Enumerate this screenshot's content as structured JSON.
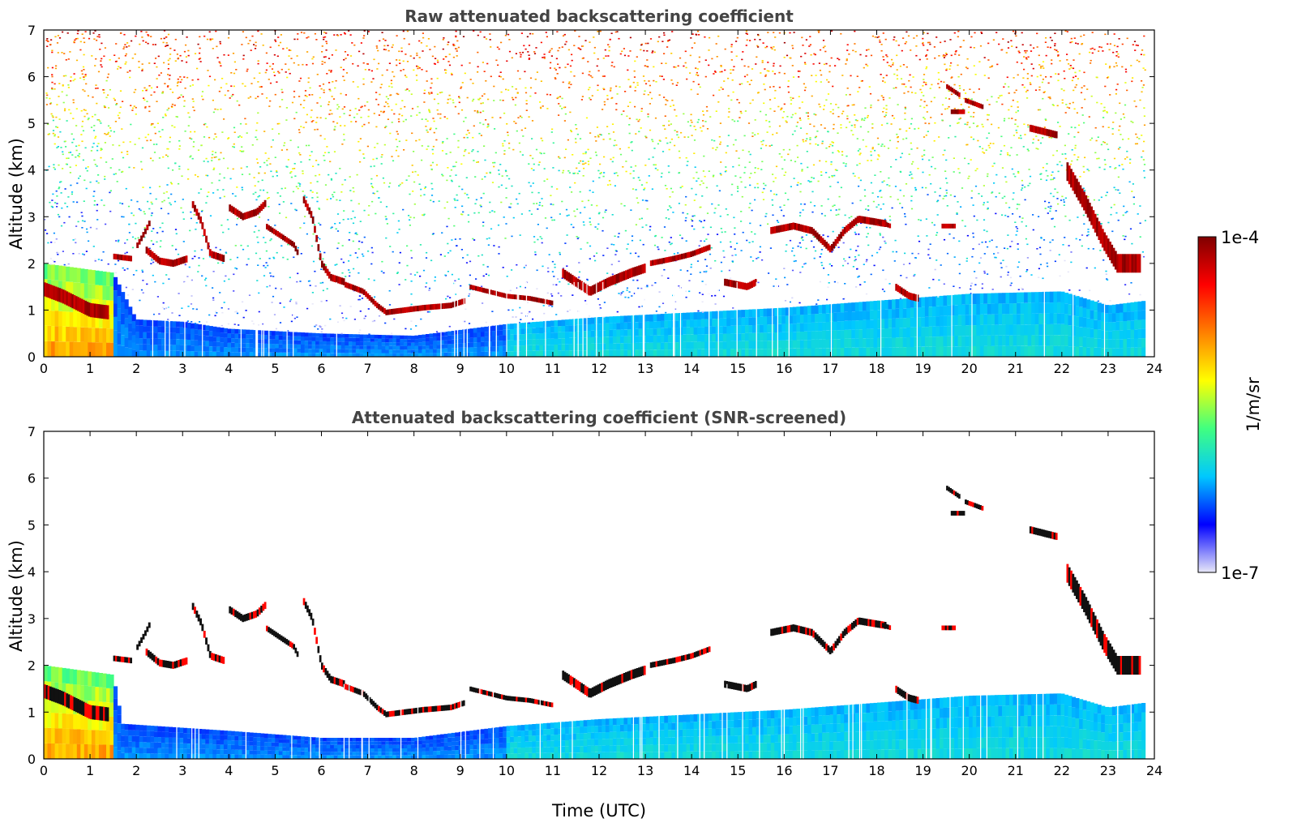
{
  "chart_data": [
    {
      "type": "heatmap",
      "title": "Raw attenuated backscattering coefficient",
      "xlabel": "",
      "ylabel": "Altitude (km)",
      "xlim": [
        0,
        24
      ],
      "ylim": [
        0,
        7
      ],
      "xticks": [
        0,
        1,
        2,
        3,
        4,
        5,
        6,
        7,
        8,
        9,
        10,
        11,
        12,
        13,
        14,
        15,
        16,
        17,
        18,
        19,
        20,
        21,
        22,
        23,
        24
      ],
      "yticks": [
        0,
        1,
        2,
        3,
        4,
        5,
        6,
        7
      ],
      "data_end_time": 23.8,
      "noise": "speckled",
      "boundary_layer_top": [
        [
          0,
          2.0
        ],
        [
          1.5,
          1.8
        ],
        [
          2,
          0.8
        ],
        [
          3,
          0.75
        ],
        [
          4,
          0.6
        ],
        [
          6,
          0.5
        ],
        [
          8,
          0.45
        ],
        [
          10,
          0.7
        ],
        [
          12,
          0.85
        ],
        [
          14,
          0.95
        ],
        [
          16,
          1.05
        ],
        [
          18,
          1.2
        ],
        [
          20,
          1.35
        ],
        [
          22,
          1.4
        ],
        [
          23,
          1.1
        ],
        [
          23.8,
          1.2
        ]
      ],
      "cloud_layers": [
        {
          "points": [
            [
              0.0,
              1.45
            ],
            [
              0.4,
              1.3
            ],
            [
              0.8,
              1.1
            ],
            [
              1.0,
              1.0
            ],
            [
              1.4,
              0.95
            ]
          ],
          "thickness": 0.3
        },
        {
          "points": [
            [
              1.5,
              2.15
            ],
            [
              1.9,
              2.1
            ]
          ],
          "thickness": 0.12
        },
        {
          "points": [
            [
              2.0,
              2.35
            ],
            [
              2.2,
              2.7
            ],
            [
              2.3,
              2.9
            ]
          ],
          "thickness": 0.12
        },
        {
          "points": [
            [
              2.2,
              2.3
            ],
            [
              2.5,
              2.05
            ],
            [
              2.8,
              2.0
            ],
            [
              3.1,
              2.1
            ]
          ],
          "thickness": 0.15
        },
        {
          "points": [
            [
              3.2,
              3.3
            ],
            [
              3.4,
              2.9
            ],
            [
              3.6,
              2.2
            ],
            [
              3.9,
              2.1
            ]
          ],
          "thickness": 0.15
        },
        {
          "points": [
            [
              4.0,
              3.2
            ],
            [
              4.3,
              3.0
            ],
            [
              4.6,
              3.1
            ],
            [
              4.8,
              3.3
            ]
          ],
          "thickness": 0.15
        },
        {
          "points": [
            [
              4.8,
              2.8
            ],
            [
              5.1,
              2.6
            ],
            [
              5.4,
              2.4
            ],
            [
              5.5,
              2.2
            ]
          ],
          "thickness": 0.12
        },
        {
          "points": [
            [
              5.6,
              3.4
            ],
            [
              5.8,
              3.0
            ],
            [
              6.0,
              2.0
            ],
            [
              6.2,
              1.7
            ],
            [
              6.5,
              1.6
            ]
          ],
          "thickness": 0.15
        },
        {
          "points": [
            [
              6.5,
              1.55
            ],
            [
              6.9,
              1.4
            ],
            [
              7.2,
              1.1
            ],
            [
              7.4,
              0.95
            ],
            [
              7.8,
              1.0
            ],
            [
              8.2,
              1.05
            ],
            [
              8.8,
              1.1
            ],
            [
              9.1,
              1.2
            ]
          ],
          "thickness": 0.12
        },
        {
          "points": [
            [
              9.2,
              1.5
            ],
            [
              9.6,
              1.4
            ],
            [
              10.0,
              1.3
            ],
            [
              10.5,
              1.25
            ],
            [
              11.0,
              1.15
            ]
          ],
          "thickness": 0.1
        },
        {
          "points": [
            [
              11.2,
              1.8
            ],
            [
              11.8,
              1.4
            ],
            [
              12.2,
              1.6
            ],
            [
              12.7,
              1.8
            ],
            [
              13.0,
              1.9
            ]
          ],
          "thickness": 0.2
        },
        {
          "points": [
            [
              13.1,
              2.0
            ],
            [
              13.6,
              2.1
            ],
            [
              14.0,
              2.2
            ],
            [
              14.4,
              2.35
            ]
          ],
          "thickness": 0.12
        },
        {
          "points": [
            [
              14.7,
              1.6
            ],
            [
              15.2,
              1.5
            ],
            [
              15.4,
              1.6
            ]
          ],
          "thickness": 0.15
        },
        {
          "points": [
            [
              15.7,
              2.7
            ],
            [
              16.2,
              2.8
            ],
            [
              16.6,
              2.7
            ],
            [
              17.0,
              2.3
            ],
            [
              17.3,
              2.7
            ],
            [
              17.6,
              2.95
            ],
            [
              18.2,
              2.85
            ]
          ],
          "thickness": 0.15
        },
        {
          "points": [
            [
              18.0,
              2.9
            ],
            [
              18.3,
              2.8
            ]
          ],
          "thickness": 0.1
        },
        {
          "points": [
            [
              18.4,
              1.5
            ],
            [
              18.7,
              1.3
            ],
            [
              18.9,
              1.25
            ]
          ],
          "thickness": 0.15
        },
        {
          "points": [
            [
              19.4,
              2.8
            ],
            [
              19.7,
              2.8
            ]
          ],
          "thickness": 0.1
        },
        {
          "points": [
            [
              19.5,
              5.8
            ],
            [
              19.8,
              5.6
            ]
          ],
          "thickness": 0.1
        },
        {
          "points": [
            [
              19.6,
              5.25
            ],
            [
              19.9,
              5.25
            ]
          ],
          "thickness": 0.1
        },
        {
          "points": [
            [
              19.9,
              5.5
            ],
            [
              20.3,
              5.35
            ]
          ],
          "thickness": 0.1
        },
        {
          "points": [
            [
              21.3,
              4.9
            ],
            [
              21.9,
              4.75
            ]
          ],
          "thickness": 0.15
        },
        {
          "points": [
            [
              22.1,
              4.0
            ],
            [
              22.5,
              3.3
            ],
            [
              22.9,
              2.5
            ],
            [
              23.2,
              2.0
            ],
            [
              23.7,
              2.0
            ]
          ],
          "thickness": 0.4
        }
      ]
    },
    {
      "type": "heatmap",
      "title": "Attenuated backscattering coefficient (SNR-screened)",
      "xlabel": "Time (UTC)",
      "ylabel": "Altitude (km)",
      "xlim": [
        0,
        24
      ],
      "ylim": [
        0,
        7
      ],
      "xticks": [
        0,
        1,
        2,
        3,
        4,
        5,
        6,
        7,
        8,
        9,
        10,
        11,
        12,
        13,
        14,
        15,
        16,
        17,
        18,
        19,
        20,
        21,
        22,
        23,
        24
      ],
      "yticks": [
        0,
        1,
        2,
        3,
        4,
        5,
        6,
        7
      ],
      "data_end_time": 23.8,
      "noise": "screened",
      "boundary_layer_top": [
        [
          0,
          2.0
        ],
        [
          1.5,
          1.8
        ],
        [
          1.7,
          0.75
        ],
        [
          4,
          0.6
        ],
        [
          6,
          0.45
        ],
        [
          8,
          0.45
        ],
        [
          10,
          0.7
        ],
        [
          12,
          0.85
        ],
        [
          14,
          0.95
        ],
        [
          16,
          1.05
        ],
        [
          18,
          1.2
        ],
        [
          20,
          1.35
        ],
        [
          22,
          1.4
        ],
        [
          23,
          1.1
        ],
        [
          23.8,
          1.2
        ]
      ],
      "cloud_layers": "same as raw panel"
    }
  ],
  "colorbar": {
    "label": "1/m/sr",
    "max_label": "1e-4",
    "min_label": "1e-7",
    "colormap": [
      "#e8e8f8",
      "#0000ff",
      "#00c8ff",
      "#40ff80",
      "#ffff00",
      "#ff8000",
      "#ff0000",
      "#7f0000"
    ]
  }
}
